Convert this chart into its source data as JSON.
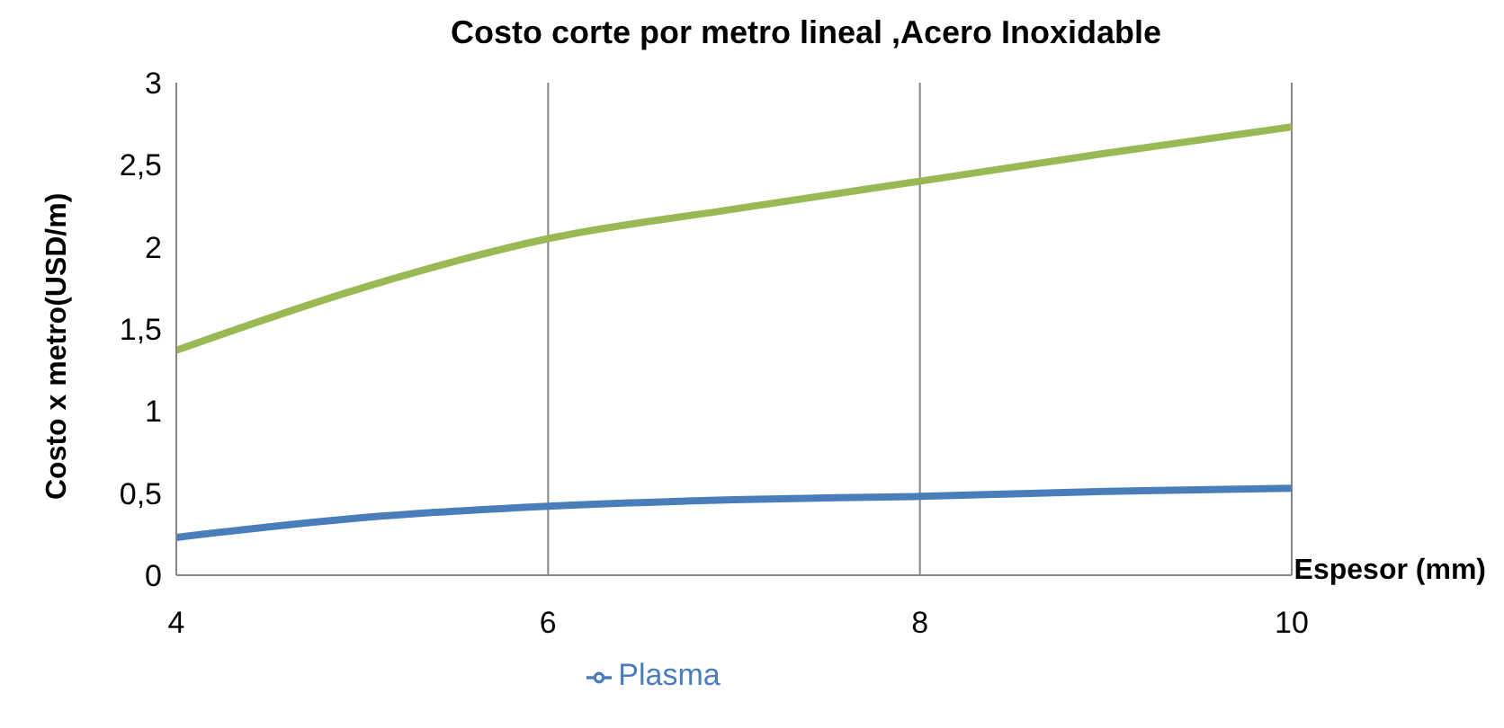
{
  "chart_data": {
    "type": "line",
    "title": "Costo corte por metro lineal ,Acero Inoxidable",
    "xlabel": "Espesor (mm)",
    "ylabel": "Costo x metro(USD/m)",
    "x": [
      4,
      5,
      6,
      7,
      8,
      9,
      10
    ],
    "series": [
      {
        "name": "Plasma",
        "color": "#4a7ebb",
        "values": [
          0.23,
          0.35,
          0.42,
          0.46,
          0.48,
          0.51,
          0.53
        ]
      },
      {
        "color": "#98b954",
        "values": [
          1.37,
          1.75,
          2.05,
          2.23,
          2.4,
          2.57,
          2.73
        ]
      }
    ],
    "xlim": [
      4,
      10
    ],
    "xticks": [
      4,
      6,
      8,
      10
    ],
    "ylim": [
      0,
      3
    ],
    "yticks": [
      0,
      {
        "value": 0.5,
        "label": "0,5"
      },
      1,
      {
        "value": 1.5,
        "label": "1,5"
      },
      2,
      {
        "value": 2.5,
        "label": "2,5"
      },
      3
    ],
    "grid": "x",
    "legend": "bottom",
    "marker": "none",
    "line_style": "solid"
  }
}
